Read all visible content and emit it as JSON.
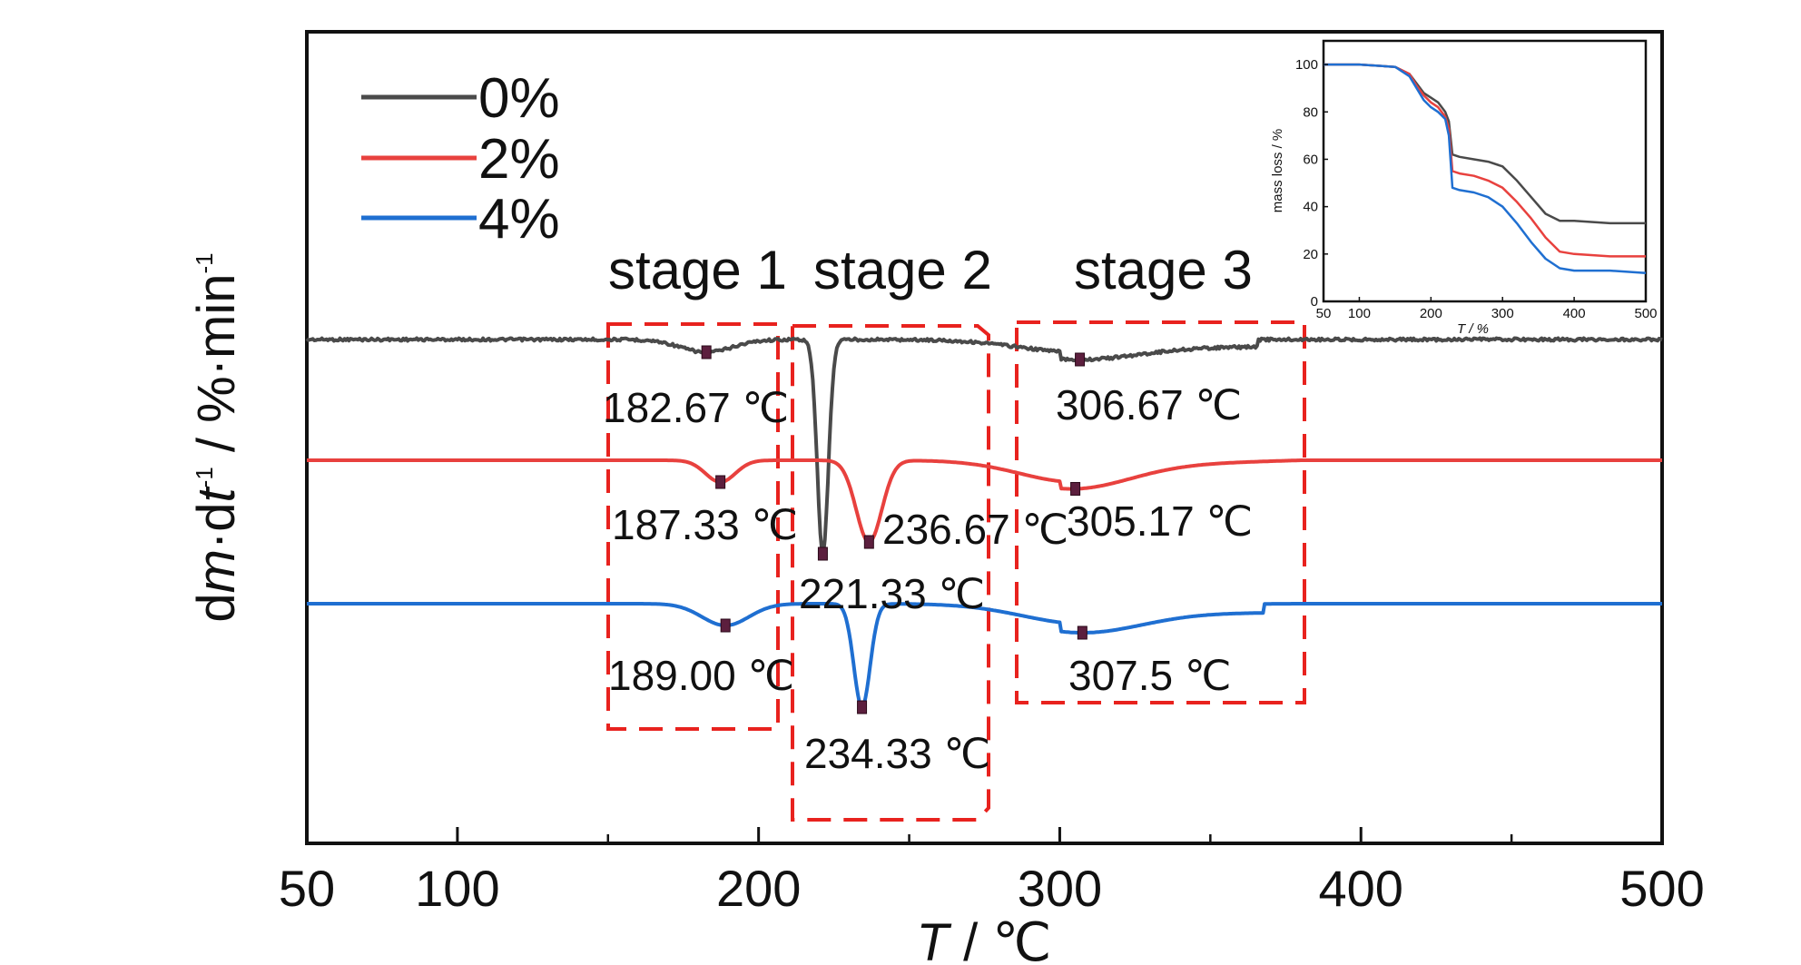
{
  "chart_data": [
    {
      "type": "line",
      "xlabel_italic": "T",
      "xlabel_rest": " / ℃",
      "ylabel_d": "d",
      "ylabel_m": "m",
      "ylabel_dot": "·d",
      "ylabel_t": "t",
      "ylabel_exp": "-1",
      "ylabel_unit": " / %·min",
      "ylabel_exp2": "-1",
      "xlim": [
        50,
        500
      ],
      "x_ticks": [
        50,
        100,
        200,
        300,
        400,
        500
      ],
      "y_ticks": [],
      "grid": false,
      "legend": {
        "position": "top-left",
        "entries": [
          {
            "label": "0%",
            "color": "#4a4a4a"
          },
          {
            "label": "2%",
            "color": "#e8413e"
          },
          {
            "label": "4%",
            "color": "#1f6fd1"
          }
        ]
      },
      "stages": [
        {
          "label": "stage 1",
          "x_range": [
            150,
            207
          ]
        },
        {
          "label": "stage 2",
          "x_range": [
            212,
            278
          ]
        },
        {
          "label": "stage 3",
          "x_range": [
            287,
            381
          ]
        }
      ],
      "series": [
        {
          "name": "0%",
          "color": "#4a4a4a",
          "peaks": [
            {
              "x": 182.67,
              "label": "182.67 ℃"
            },
            {
              "x": 221.33,
              "label": "221.33 ℃"
            },
            {
              "x": 306.67,
              "label": "306.67 ℃"
            }
          ]
        },
        {
          "name": "2%",
          "color": "#e8413e",
          "peaks": [
            {
              "x": 187.33,
              "label": "187.33 ℃"
            },
            {
              "x": 236.67,
              "label": "236.67 ℃"
            },
            {
              "x": 305.17,
              "label": "305.17 ℃"
            }
          ]
        },
        {
          "name": "4%",
          "color": "#1f6fd1",
          "peaks": [
            {
              "x": 189.0,
              "label": "189.00 ℃"
            },
            {
              "x": 234.33,
              "label": "234.33 ℃"
            },
            {
              "x": 307.5,
              "label": "307.5 ℃"
            }
          ]
        }
      ]
    },
    {
      "type": "line",
      "inset": true,
      "xlabel": "T / %",
      "ylabel": "mass loss / %",
      "xlim": [
        50,
        500
      ],
      "ylim": [
        0,
        110
      ],
      "x_ticks": [
        50,
        100,
        200,
        300,
        400,
        500
      ],
      "y_ticks": [
        0,
        20,
        40,
        60,
        80,
        100
      ],
      "series": [
        {
          "name": "0%",
          "color": "#4a4a4a",
          "x": [
            50,
            100,
            150,
            170,
            180,
            190,
            200,
            210,
            220,
            225,
            230,
            240,
            260,
            280,
            300,
            320,
            340,
            360,
            380,
            400,
            450,
            500
          ],
          "y": [
            100,
            100,
            99,
            96,
            92,
            88,
            86,
            84,
            80,
            76,
            62,
            61,
            60,
            59,
            57,
            51,
            44,
            37,
            34,
            34,
            33,
            33
          ]
        },
        {
          "name": "2%",
          "color": "#e8413e",
          "x": [
            50,
            100,
            150,
            170,
            180,
            190,
            200,
            210,
            220,
            225,
            230,
            240,
            260,
            280,
            300,
            320,
            340,
            360,
            380,
            400,
            450,
            500
          ],
          "y": [
            100,
            100,
            99,
            96,
            91,
            87,
            84,
            82,
            78,
            73,
            55,
            54,
            53,
            51,
            48,
            42,
            35,
            27,
            21,
            20,
            19,
            19
          ]
        },
        {
          "name": "4%",
          "color": "#1f6fd1",
          "x": [
            50,
            100,
            150,
            170,
            180,
            190,
            200,
            210,
            220,
            225,
            230,
            240,
            260,
            280,
            300,
            320,
            340,
            360,
            380,
            400,
            450,
            500
          ],
          "y": [
            100,
            100,
            99,
            95,
            90,
            85,
            82,
            80,
            77,
            70,
            48,
            47,
            46,
            44,
            40,
            33,
            25,
            18,
            14,
            13,
            13,
            12
          ]
        }
      ]
    }
  ]
}
